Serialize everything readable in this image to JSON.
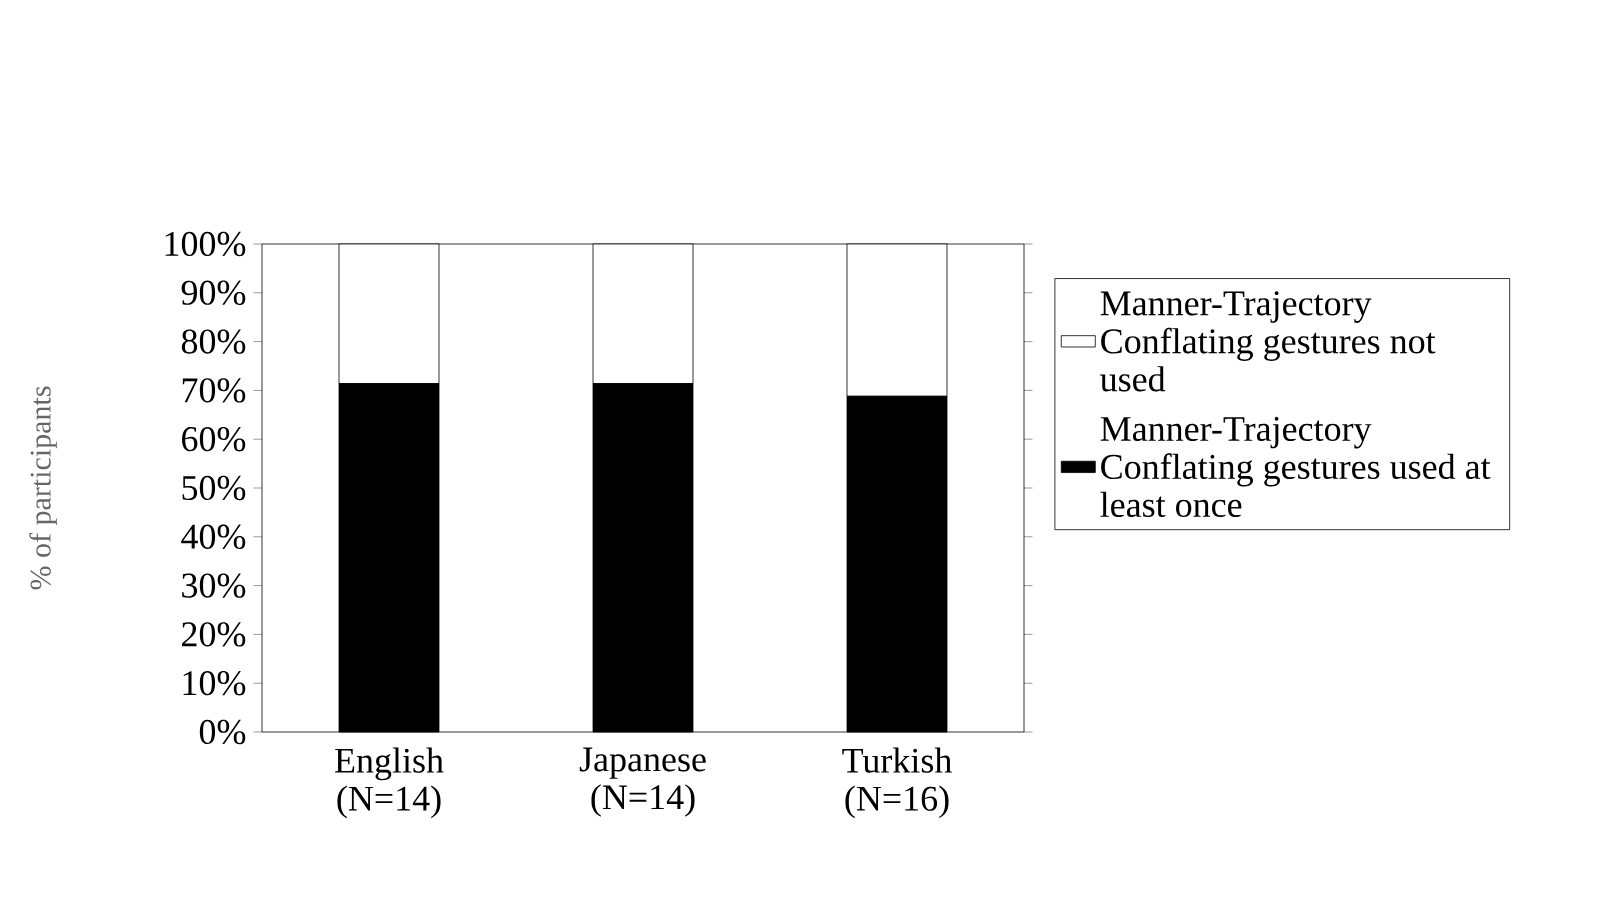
{
  "chart_data": {
    "type": "bar",
    "stacked": true,
    "ylabel": "% of participants",
    "categories": [
      "English (N=14)",
      "Japanese (N=14)",
      "Turkish (N=16)"
    ],
    "series": [
      {
        "name": "Manner-Trajectory Conflating gestures used at least once",
        "color": "#000000",
        "values": [
          71.4,
          71.4,
          68.8
        ]
      },
      {
        "name": "Manner-Trajectory Conflating gestures not used",
        "color": "#ffffff",
        "values": [
          28.6,
          28.6,
          31.2
        ]
      }
    ],
    "ylim": [
      0,
      100
    ],
    "yticks": [
      {
        "value": 0,
        "label": "0%"
      },
      {
        "value": 10,
        "label": "10%"
      },
      {
        "value": 20,
        "label": "20%"
      },
      {
        "value": 30,
        "label": "30%"
      },
      {
        "value": 40,
        "label": "40%"
      },
      {
        "value": 50,
        "label": "50%"
      },
      {
        "value": 60,
        "label": "60%"
      },
      {
        "value": 70,
        "label": "70%"
      },
      {
        "value": 80,
        "label": "80%"
      },
      {
        "value": 90,
        "label": "90%"
      },
      {
        "value": 100,
        "label": "100%"
      }
    ],
    "legend": "right",
    "grid": false
  }
}
